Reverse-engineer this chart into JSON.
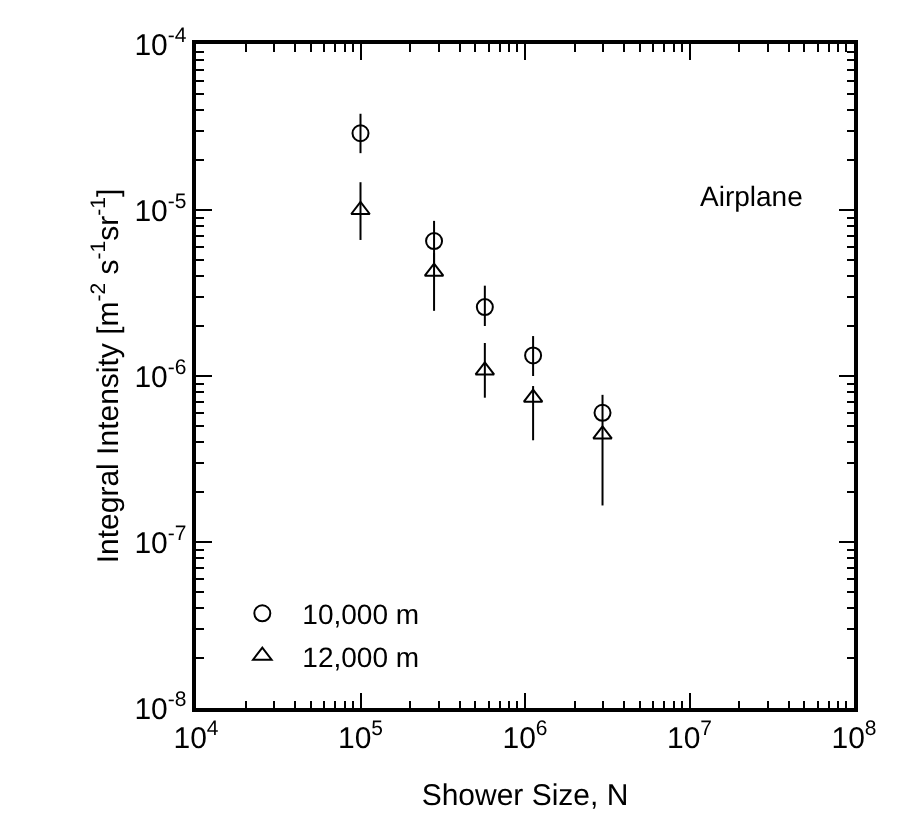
{
  "chart_data": {
    "type": "scatter",
    "xlabel": "Shower Size, N",
    "ylabel": "Integral Intensity [m$^{-2}$ s$^{-1}$sr$^{-1}$]",
    "log": "xy",
    "legend": "bottom left",
    "xlim": [
      10000,
      100000000
    ],
    "ylim": [
      1e-08,
      0.0001
    ],
    "xticks": [
      {
        "value": 10000,
        "label": "10$^{4}$"
      },
      {
        "value": 100000,
        "label": "10$^{5}$"
      },
      {
        "value": 1000000,
        "label": "10$^{6}$"
      },
      {
        "value": 10000000,
        "label": "10$^{7}$"
      },
      {
        "value": 100000000,
        "label": "10$^{8}$"
      }
    ],
    "yticks": [
      {
        "value": 1e-08,
        "label": "10$^{-8}$"
      },
      {
        "value": 1e-07,
        "label": "10$^{-7}$"
      },
      {
        "value": 1e-06,
        "label": "10$^{-6}$"
      },
      {
        "value": 1e-05,
        "label": "10$^{-5}$"
      },
      {
        "value": 0.0001,
        "label": "10$^{-4}$"
      }
    ],
    "annotations": [
      "Airplane"
    ],
    "series": [
      {
        "name": "10,000 m",
        "color": "#000000",
        "marker": "circle",
        "x": [
          100000,
          280000,
          570000,
          1120000,
          2960000
        ],
        "values": [
          2.9e-05,
          6.5e-06,
          2.6e-06,
          1.33e-06,
          6e-07
        ],
        "errors": [
          [
            2.2e-05,
            3.8e-05
          ],
          [
            4.8e-06,
            8.6e-06
          ],
          [
            2e-06,
            3.5e-06
          ],
          [
            1e-06,
            1.74e-06
          ],
          [
            5e-07,
            7.7e-07
          ]
        ]
      },
      {
        "name": "12,000 m",
        "color": "#000000",
        "marker": "triangle",
        "x": [
          100000,
          280000,
          570000,
          1120000,
          2960000
        ],
        "values": [
          1e-05,
          4.25e-06,
          1.08e-06,
          7.4e-07,
          4.45e-07
        ],
        "errors": [
          [
            6.6e-06,
            1.47e-05
          ],
          [
            2.47e-06,
            5.5e-06
          ],
          [
            7.4e-07,
            1.58e-06
          ],
          [
            4.1e-07,
            8.7e-07
          ],
          [
            1.66e-07,
            5e-07
          ]
        ]
      }
    ]
  }
}
